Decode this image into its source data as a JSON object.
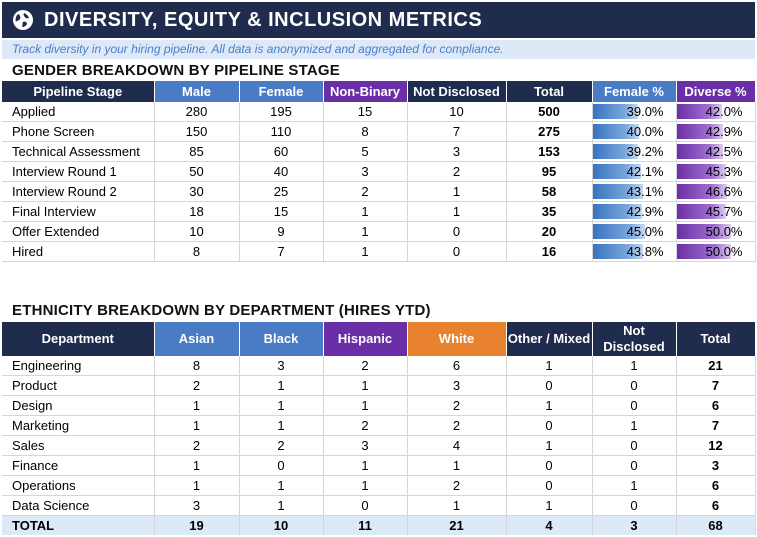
{
  "header": {
    "title": "DIVERSITY, EQUITY & INCLUSION METRICS",
    "icon": "globe-icon",
    "subtitle": "Track diversity in your hiring pipeline. All data is anonymized and aggregated for compliance."
  },
  "colors": {
    "navy": "#1f2c4e",
    "blue": "#4a7cc5",
    "purple": "#6a2fa6",
    "orange": "#e8822f",
    "subtitle_bg": "#dde9f7",
    "total_row_bg": "#dce9f7"
  },
  "gender": {
    "title": "GENDER BREAKDOWN BY PIPELINE STAGE",
    "headers": [
      "Pipeline Stage",
      "Male",
      "Female",
      "Non-Binary",
      "Not Disclosed",
      "Total",
      "Female %",
      "Diverse %"
    ],
    "rows": [
      {
        "stage": "Applied",
        "male": "280",
        "female": "195",
        "nonbinary": "15",
        "notdisclosed": "10",
        "total": "500",
        "female_pct": "39.0%",
        "diverse_pct": "42.0%",
        "female_frac": 0.39,
        "diverse_frac": 0.42
      },
      {
        "stage": "Phone Screen",
        "male": "150",
        "female": "110",
        "nonbinary": "8",
        "notdisclosed": "7",
        "total": "275",
        "female_pct": "40.0%",
        "diverse_pct": "42.9%",
        "female_frac": 0.4,
        "diverse_frac": 0.429
      },
      {
        "stage": "Technical Assessment",
        "male": "85",
        "female": "60",
        "nonbinary": "5",
        "notdisclosed": "3",
        "total": "153",
        "female_pct": "39.2%",
        "diverse_pct": "42.5%",
        "female_frac": 0.392,
        "diverse_frac": 0.425
      },
      {
        "stage": "Interview Round 1",
        "male": "50",
        "female": "40",
        "nonbinary": "3",
        "notdisclosed": "2",
        "total": "95",
        "female_pct": "42.1%",
        "diverse_pct": "45.3%",
        "female_frac": 0.421,
        "diverse_frac": 0.453
      },
      {
        "stage": "Interview Round 2",
        "male": "30",
        "female": "25",
        "nonbinary": "2",
        "notdisclosed": "1",
        "total": "58",
        "female_pct": "43.1%",
        "diverse_pct": "46.6%",
        "female_frac": 0.431,
        "diverse_frac": 0.466
      },
      {
        "stage": "Final Interview",
        "male": "18",
        "female": "15",
        "nonbinary": "1",
        "notdisclosed": "1",
        "total": "35",
        "female_pct": "42.9%",
        "diverse_pct": "45.7%",
        "female_frac": 0.429,
        "diverse_frac": 0.457
      },
      {
        "stage": "Offer Extended",
        "male": "10",
        "female": "9",
        "nonbinary": "1",
        "notdisclosed": "0",
        "total": "20",
        "female_pct": "45.0%",
        "diverse_pct": "50.0%",
        "female_frac": 0.45,
        "diverse_frac": 0.5
      },
      {
        "stage": "Hired",
        "male": "8",
        "female": "7",
        "nonbinary": "1",
        "notdisclosed": "0",
        "total": "16",
        "female_pct": "43.8%",
        "diverse_pct": "50.0%",
        "female_frac": 0.438,
        "diverse_frac": 0.5
      }
    ]
  },
  "ethnicity": {
    "title": "ETHNICITY BREAKDOWN BY DEPARTMENT (HIRES YTD)",
    "headers": [
      "Department",
      "Asian",
      "Black",
      "Hispanic",
      "White",
      "Other / Mixed",
      "Not Disclosed",
      "Total"
    ],
    "rows": [
      {
        "dept": "Engineering",
        "asian": "8",
        "black": "3",
        "hispanic": "2",
        "white": "6",
        "other": "1",
        "notdisclosed": "1",
        "total": "21"
      },
      {
        "dept": "Product",
        "asian": "2",
        "black": "1",
        "hispanic": "1",
        "white": "3",
        "other": "0",
        "notdisclosed": "0",
        "total": "7"
      },
      {
        "dept": "Design",
        "asian": "1",
        "black": "1",
        "hispanic": "1",
        "white": "2",
        "other": "1",
        "notdisclosed": "0",
        "total": "6"
      },
      {
        "dept": "Marketing",
        "asian": "1",
        "black": "1",
        "hispanic": "2",
        "white": "2",
        "other": "0",
        "notdisclosed": "1",
        "total": "7"
      },
      {
        "dept": "Sales",
        "asian": "2",
        "black": "2",
        "hispanic": "3",
        "white": "4",
        "other": "1",
        "notdisclosed": "0",
        "total": "12"
      },
      {
        "dept": "Finance",
        "asian": "1",
        "black": "0",
        "hispanic": "1",
        "white": "1",
        "other": "0",
        "notdisclosed": "0",
        "total": "3"
      },
      {
        "dept": "Operations",
        "asian": "1",
        "black": "1",
        "hispanic": "1",
        "white": "2",
        "other": "0",
        "notdisclosed": "1",
        "total": "6"
      },
      {
        "dept": "Data Science",
        "asian": "3",
        "black": "1",
        "hispanic": "0",
        "white": "1",
        "other": "1",
        "notdisclosed": "0",
        "total": "6"
      }
    ],
    "total_row": {
      "label": "TOTAL",
      "asian": "19",
      "black": "10",
      "hispanic": "11",
      "white": "21",
      "other": "4",
      "notdisclosed": "3",
      "total": "68"
    }
  }
}
